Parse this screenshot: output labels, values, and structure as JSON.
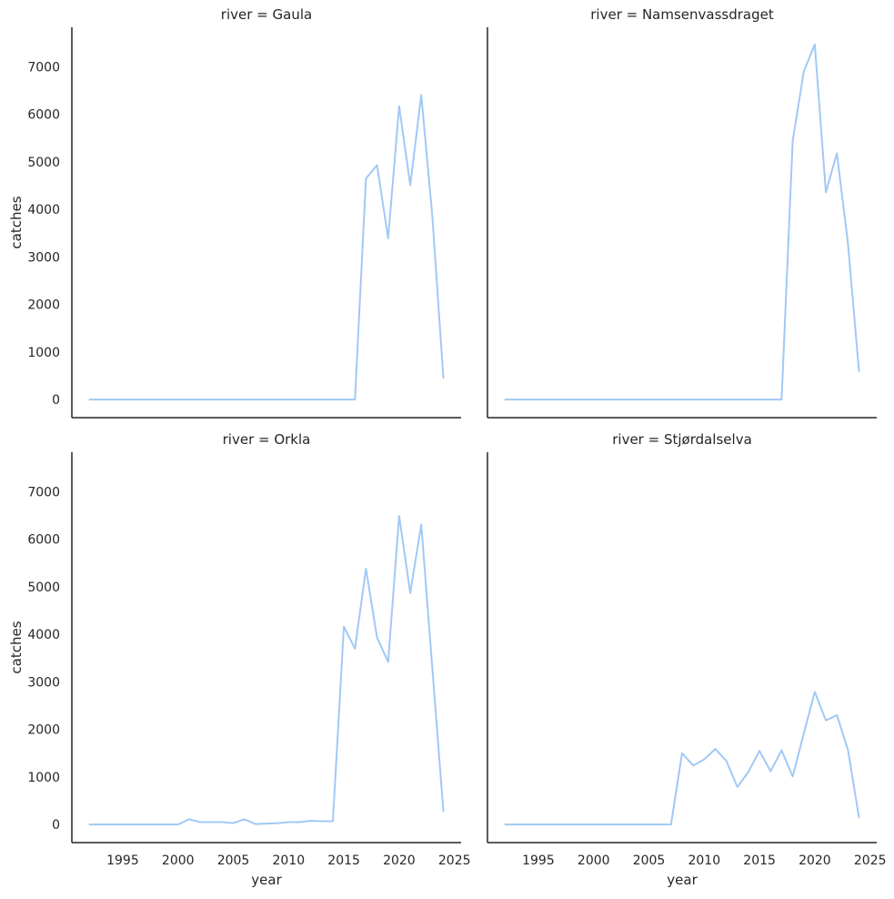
{
  "chart_data": {
    "type": "line",
    "facet_by": "river",
    "xlabel": "year",
    "ylabel": "catches",
    "xlim": [
      1990.4,
      2025.6
    ],
    "ylim": [
      -380,
      7830
    ],
    "x_ticks": [
      1995,
      2000,
      2005,
      2010,
      2015,
      2020,
      2025
    ],
    "y_ticks": [
      0,
      1000,
      2000,
      3000,
      4000,
      5000,
      6000,
      7000
    ],
    "line_color": "#a1c9f4",
    "grid": false,
    "panels": [
      {
        "title": "river = Gaula",
        "x": [
          1992,
          1993,
          1994,
          1995,
          1996,
          1997,
          1998,
          1999,
          2000,
          2001,
          2002,
          2003,
          2004,
          2005,
          2006,
          2007,
          2008,
          2009,
          2010,
          2011,
          2012,
          2013,
          2014,
          2015,
          2016,
          2017,
          2018,
          2019,
          2020,
          2021,
          2022,
          2023,
          2024
        ],
        "y": [
          0,
          0,
          0,
          0,
          0,
          0,
          0,
          0,
          0,
          0,
          0,
          0,
          0,
          0,
          0,
          0,
          0,
          0,
          0,
          0,
          0,
          0,
          0,
          0,
          0,
          4650,
          4930,
          3390,
          6170,
          4510,
          6410,
          3850,
          460
        ]
      },
      {
        "title": "river = Namsenvassdraget",
        "x": [
          1992,
          1993,
          1994,
          1995,
          1996,
          1997,
          1998,
          1999,
          2000,
          2001,
          2002,
          2003,
          2004,
          2005,
          2006,
          2007,
          2008,
          2009,
          2010,
          2011,
          2012,
          2013,
          2014,
          2015,
          2016,
          2017,
          2018,
          2019,
          2020,
          2021,
          2022,
          2023,
          2024
        ],
        "y": [
          0,
          0,
          0,
          0,
          0,
          0,
          0,
          0,
          0,
          0,
          0,
          0,
          0,
          0,
          0,
          0,
          0,
          0,
          0,
          0,
          0,
          0,
          0,
          0,
          0,
          0,
          5440,
          6900,
          7470,
          4360,
          5180,
          3280,
          600
        ]
      },
      {
        "title": "river = Orkla",
        "x": [
          1992,
          1993,
          1994,
          1995,
          1996,
          1997,
          1998,
          1999,
          2000,
          2001,
          2002,
          2003,
          2004,
          2005,
          2006,
          2007,
          2008,
          2009,
          2010,
          2011,
          2012,
          2013,
          2014,
          2015,
          2016,
          2017,
          2018,
          2019,
          2020,
          2021,
          2022,
          2023,
          2024
        ],
        "y": [
          0,
          0,
          0,
          0,
          0,
          0,
          0,
          0,
          0,
          110,
          50,
          50,
          50,
          30,
          110,
          10,
          20,
          30,
          50,
          50,
          80,
          70,
          70,
          4160,
          3700,
          5380,
          3930,
          3420,
          6490,
          4870,
          6310,
          3280,
          280
        ]
      },
      {
        "title": "river = Stjørdalselva",
        "x": [
          1992,
          1993,
          1994,
          1995,
          1996,
          1997,
          1998,
          1999,
          2000,
          2001,
          2002,
          2003,
          2004,
          2005,
          2006,
          2007,
          2008,
          2009,
          2010,
          2011,
          2012,
          2013,
          2014,
          2015,
          2016,
          2017,
          2018,
          2019,
          2020,
          2021,
          2022,
          2023,
          2024
        ],
        "y": [
          0,
          0,
          0,
          0,
          0,
          0,
          0,
          0,
          0,
          0,
          0,
          0,
          0,
          0,
          0,
          0,
          1500,
          1240,
          1370,
          1590,
          1340,
          790,
          1110,
          1550,
          1120,
          1560,
          1010,
          1910,
          2790,
          2190,
          2300,
          1570,
          150
        ]
      }
    ]
  }
}
